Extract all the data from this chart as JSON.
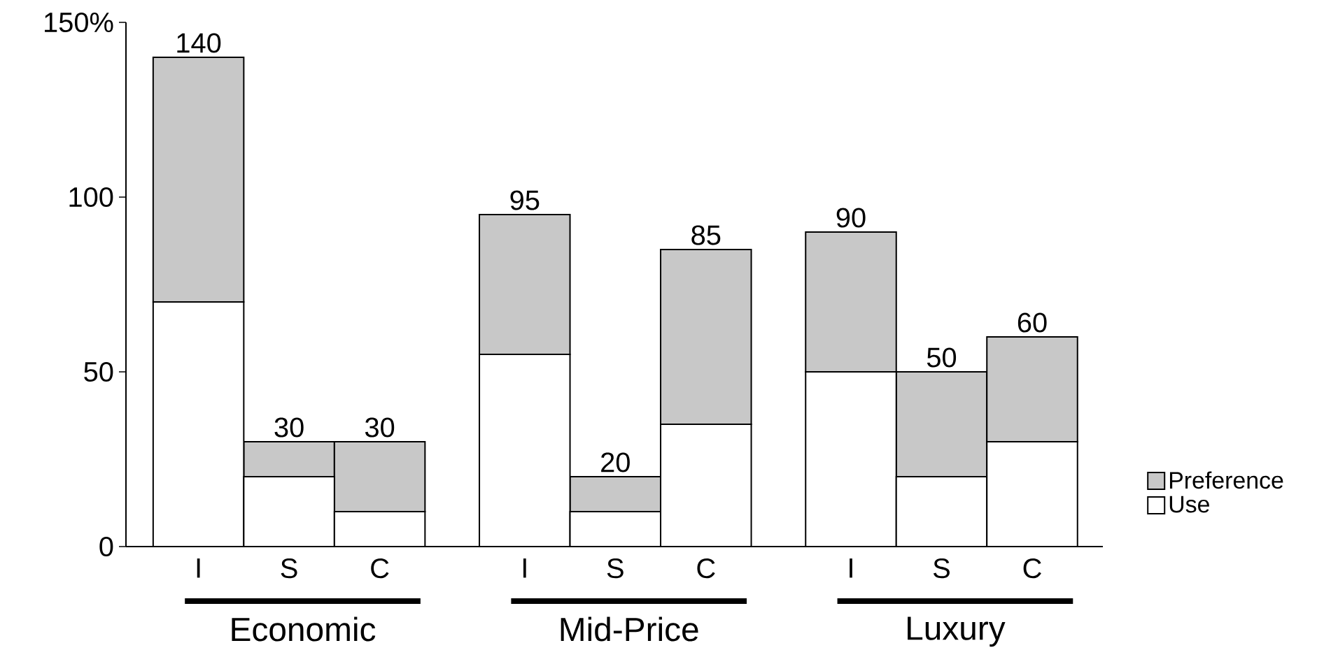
{
  "chart_data": {
    "type": "bar",
    "stacked": true,
    "categories": [
      "I",
      "S",
      "C",
      "I",
      "S",
      "C",
      "I",
      "S",
      "C"
    ],
    "series": [
      {
        "name": "Use",
        "color": "#ffffff",
        "values": [
          70,
          20,
          10,
          55,
          10,
          35,
          50,
          20,
          30
        ]
      },
      {
        "name": "Preference",
        "color": "#c8c8c8",
        "values": [
          70,
          10,
          20,
          40,
          10,
          50,
          40,
          30,
          30
        ]
      }
    ],
    "totals": [
      "140",
      "30",
      "30",
      "95",
      "20",
      "85",
      "90",
      "50",
      "60"
    ],
    "annotations": [
      "Economic",
      "Mid-Price",
      "Luxury"
    ],
    "ylim": [
      0,
      150
    ],
    "yticks": [
      0,
      50,
      100,
      {
        "value": 150,
        "label": "150%"
      }
    ],
    "legend": "bottom right",
    "grid": false
  }
}
